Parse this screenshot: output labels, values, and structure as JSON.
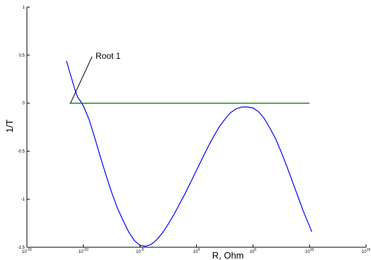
{
  "chart_data": {
    "type": "line",
    "title": "",
    "xlabel": "R, Ohm",
    "ylabel": "1/T",
    "x_scale": "log",
    "xlim": [
      1e-15,
      1000000000000000.0
    ],
    "ylim": [
      -1.5,
      1
    ],
    "x_ticks": [
      {
        "base": "10",
        "exp": "-15"
      },
      {
        "base": "10",
        "exp": "-10"
      },
      {
        "base": "10",
        "exp": "-5"
      },
      {
        "base": "10",
        "exp": "0"
      },
      {
        "base": "10",
        "exp": "5"
      },
      {
        "base": "10",
        "exp": "10"
      },
      {
        "base": "10",
        "exp": "15"
      }
    ],
    "x_tick_values": [
      1e-15,
      1e-10,
      1e-05,
      1,
      100000.0,
      10000000000.0,
      1000000000000000.0
    ],
    "y_ticks": [
      "-1.5",
      "-1",
      "-0.5",
      "0",
      "0.5",
      "1"
    ],
    "y_tick_values": [
      -1.5,
      -1,
      -0.5,
      0,
      0.5,
      1
    ],
    "grid": false,
    "series": [
      {
        "color": "#0000ff",
        "x": [
          3.16e-12,
          5.6e-12,
          1e-11,
          1.78e-11,
          3.16e-11,
          5.6e-11,
          1e-10,
          3.16e-10,
          1e-09,
          3.16e-09,
          1e-08,
          3.16e-08,
          1e-07,
          3.16e-07,
          1e-06,
          3.16e-06,
          1e-05,
          3.16e-05,
          0.0001,
          0.000316,
          0.001,
          0.00316,
          0.01,
          0.0316,
          0.1,
          0.316,
          1,
          3.16,
          10,
          31.6,
          100,
          316,
          1000,
          3160,
          10000,
          31600,
          100000,
          316000,
          1000000,
          3160000,
          10000000,
          31600000,
          100000000,
          316000000,
          1000000000,
          3160000000,
          10000000000,
          15800000000
        ],
        "y": [
          0.44,
          0.34,
          0.24,
          0.14,
          0.06,
          0.02,
          -0.03,
          -0.17,
          -0.36,
          -0.56,
          -0.75,
          -0.93,
          -1.09,
          -1.22,
          -1.34,
          -1.43,
          -1.48,
          -1.49,
          -1.47,
          -1.42,
          -1.35,
          -1.26,
          -1.16,
          -1.05,
          -0.94,
          -0.82,
          -0.7,
          -0.58,
          -0.46,
          -0.35,
          -0.25,
          -0.17,
          -0.1,
          -0.06,
          -0.04,
          -0.04,
          -0.05,
          -0.09,
          -0.16,
          -0.26,
          -0.37,
          -0.51,
          -0.66,
          -0.82,
          -0.98,
          -1.14,
          -1.28,
          -1.34
        ]
      },
      {
        "color": "#007700",
        "x": [
          6e-12,
          10000000000.0
        ],
        "y": [
          0,
          0
        ]
      }
    ],
    "annotations": [
      {
        "text": "Root 1",
        "x": 6e-11,
        "y": 0
      }
    ]
  }
}
